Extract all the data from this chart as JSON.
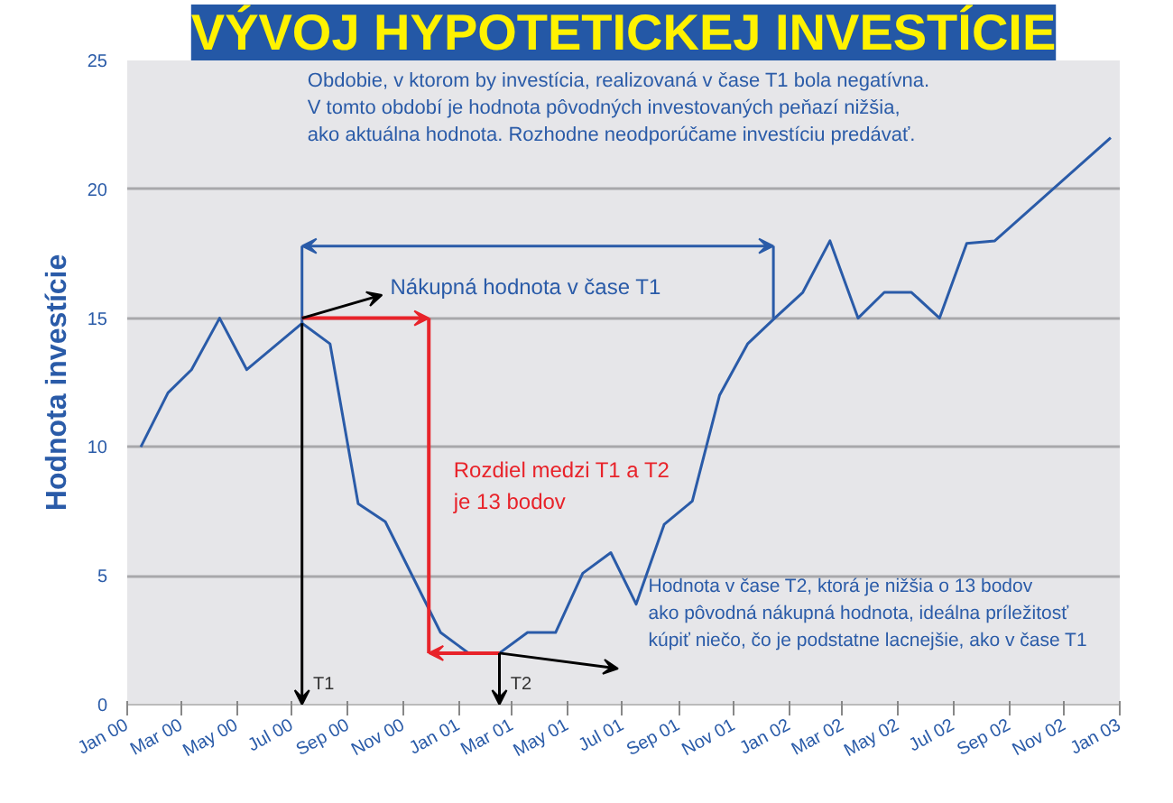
{
  "chart_data": {
    "type": "line",
    "title": "VÝVOJ HYPOTETICKEJ INVESTÍCIE",
    "ylabel": "Hodnota investície",
    "x": [
      "2000-01-16",
      "2000-02-15",
      "2000-03-12",
      "2000-04-12",
      "2000-05-12",
      "2000-07-12",
      "2000-08-12",
      "2000-09-12",
      "2000-10-12",
      "2000-12-12",
      "2001-01-12",
      "2001-02-15",
      "2001-03-18",
      "2001-04-18",
      "2001-05-18",
      "2001-06-18",
      "2001-07-16",
      "2001-08-16",
      "2001-09-16",
      "2001-10-16",
      "2001-11-16",
      "2001-12-16",
      "2002-01-16",
      "2002-02-15",
      "2002-03-18",
      "2002-04-16",
      "2002-05-16",
      "2002-06-16",
      "2002-07-16",
      "2002-08-16",
      "2002-12-22"
    ],
    "series": [
      {
        "color": "#2a5ba8",
        "values": [
          10,
          12.1,
          13,
          15,
          13,
          14.8,
          14,
          7.8,
          7.1,
          2.8,
          2,
          2,
          2.8,
          2.8,
          5.1,
          5.9,
          3.9,
          7,
          7.9,
          12,
          14,
          15,
          16,
          18,
          15,
          16,
          16,
          15,
          17.9,
          18,
          22
        ]
      }
    ],
    "xlim": [
      "2000-01-01",
      "2003-01-01"
    ],
    "xticks": [
      {
        "value": "2000-01-01",
        "label": "Jan 00"
      },
      {
        "value": "2000-03-01",
        "label": "Mar 00"
      },
      {
        "value": "2000-05-01",
        "label": "May 00"
      },
      {
        "value": "2000-07-01",
        "label": "Jul 00"
      },
      {
        "value": "2000-09-01",
        "label": "Sep 00"
      },
      {
        "value": "2000-11-01",
        "label": "Nov 00"
      },
      {
        "value": "2001-01-01",
        "label": "Jan 01"
      },
      {
        "value": "2001-03-01",
        "label": "Mar 01"
      },
      {
        "value": "2001-05-01",
        "label": "May 01"
      },
      {
        "value": "2001-07-01",
        "label": "Jul 01"
      },
      {
        "value": "2001-09-01",
        "label": "Sep 01"
      },
      {
        "value": "2001-11-01",
        "label": "Nov 01"
      },
      {
        "value": "2002-01-01",
        "label": "Jan 02"
      },
      {
        "value": "2002-03-01",
        "label": "Mar 02"
      },
      {
        "value": "2002-05-01",
        "label": "May 02"
      },
      {
        "value": "2002-07-01",
        "label": "Jul 02"
      },
      {
        "value": "2002-09-01",
        "label": "Sep 02"
      },
      {
        "value": "2002-11-01",
        "label": "Nov 02"
      },
      {
        "value": "2003-01-01",
        "label": "Jan 03"
      }
    ],
    "ylim": [
      0,
      25
    ],
    "yticks": [
      0,
      5,
      10,
      15,
      20,
      25
    ],
    "grid": "y",
    "marker": "none",
    "line_style": "solid",
    "annotations": [
      "Obdobie, v ktorom by investícia, realizovaná v čase T1 bola negatívna.\nV tomto období je hodnota pôvodných investovaných peňazí nižšia,\nako aktuálna hodnota. Rozhodne neodporúčame investíciu predávať.",
      {
        "text": "Nákupná hodnota v čase T1",
        "x": "2000-07-12",
        "y": 14.8
      },
      "Rozdiel medzi T1 a T2\nje 13 bodov",
      "Hodnota v čase T2, ktorá je nižšia o 13 bodov\nako pôvodná nákupná hodnota, ideálna príležitosť\nkúpiť niečo, čo je podstatne lacnejšie, ako v čase T1",
      "T1",
      "T2"
    ]
  }
}
